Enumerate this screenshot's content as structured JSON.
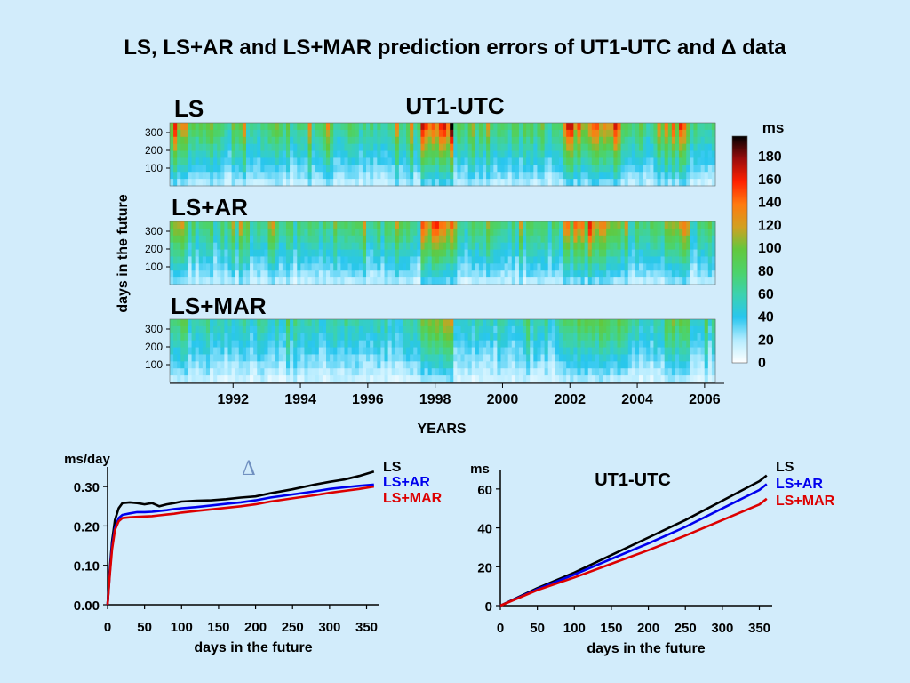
{
  "title": "LS, LS+AR and LS+MAR prediction errors of UT1-UTC and Δ data",
  "heatmap": {
    "title": "UT1-UTC",
    "ylabel": "days in the future",
    "xlabel": "YEARS",
    "colorbar_unit": "ms",
    "colorbar_ticks": [
      "180",
      "160",
      "140",
      "120",
      "100",
      "80",
      "60",
      "40",
      "20",
      "0"
    ],
    "colorbar_colors": [
      "#ffffff",
      "#b5ecff",
      "#28c6ef",
      "#3bd2b0",
      "#4cd36a",
      "#62c83e",
      "#d2a020",
      "#ff7a10",
      "#ff2000",
      "#9a0c0c",
      "#000000"
    ]
  },
  "chart_data": [
    {
      "type": "heatmap",
      "title": "LS",
      "x_ticks": [
        "1992",
        "1994",
        "1996",
        "1998",
        "2000",
        "2002",
        "2004",
        "2006"
      ],
      "y_ticks": [
        "100",
        "200",
        "300"
      ],
      "colorbar": {
        "unit": "ms",
        "range": [
          0,
          180
        ]
      }
    },
    {
      "type": "heatmap",
      "title": "LS+AR",
      "x_ticks": [
        "1992",
        "1994",
        "1996",
        "1998",
        "2000",
        "2002",
        "2004",
        "2006"
      ],
      "y_ticks": [
        "100",
        "200",
        "300"
      ],
      "colorbar": {
        "unit": "ms",
        "range": [
          0,
          180
        ]
      }
    },
    {
      "type": "heatmap",
      "title": "LS+MAR",
      "x_ticks": [
        "1992",
        "1994",
        "1996",
        "1998",
        "2000",
        "2002",
        "2004",
        "2006"
      ],
      "y_ticks": [
        "100",
        "200",
        "300"
      ],
      "colorbar": {
        "unit": "ms",
        "range": [
          0,
          180
        ]
      }
    },
    {
      "type": "line",
      "title": "Δ",
      "ylabel": "ms/day",
      "xlabel": "days in the future",
      "xlim": [
        0,
        365
      ],
      "ylim": [
        0,
        0.35
      ],
      "x_ticks": [
        "0",
        "50",
        "100",
        "150",
        "200",
        "250",
        "300",
        "350"
      ],
      "y_ticks": [
        "0.00",
        "0.10",
        "0.20",
        "0.30"
      ],
      "x": [
        0,
        3,
        6,
        10,
        15,
        20,
        30,
        40,
        50,
        60,
        70,
        80,
        90,
        100,
        120,
        140,
        160,
        180,
        200,
        220,
        250,
        280,
        300,
        320,
        340,
        360
      ],
      "series": [
        {
          "name": "LS",
          "color": "#000000",
          "values": [
            0.0,
            0.09,
            0.16,
            0.215,
            0.245,
            0.258,
            0.26,
            0.258,
            0.255,
            0.258,
            0.25,
            0.255,
            0.258,
            0.262,
            0.264,
            0.265,
            0.268,
            0.272,
            0.275,
            0.283,
            0.293,
            0.305,
            0.312,
            0.318,
            0.327,
            0.338
          ]
        },
        {
          "name": "LS+AR",
          "color": "#0000ee",
          "values": [
            0.0,
            0.08,
            0.15,
            0.195,
            0.22,
            0.228,
            0.232,
            0.235,
            0.235,
            0.236,
            0.238,
            0.24,
            0.243,
            0.245,
            0.248,
            0.252,
            0.256,
            0.26,
            0.265,
            0.272,
            0.28,
            0.288,
            0.294,
            0.298,
            0.302,
            0.305
          ]
        },
        {
          "name": "LS+MAR",
          "color": "#dd0000",
          "values": [
            0.0,
            0.075,
            0.14,
            0.19,
            0.212,
            0.22,
            0.222,
            0.223,
            0.224,
            0.225,
            0.227,
            0.229,
            0.231,
            0.234,
            0.238,
            0.242,
            0.246,
            0.25,
            0.255,
            0.262,
            0.27,
            0.278,
            0.284,
            0.289,
            0.294,
            0.3
          ]
        }
      ]
    },
    {
      "type": "line",
      "title": "UT1-UTC",
      "ylabel": "ms",
      "xlabel": "days in the future",
      "xlim": [
        0,
        365
      ],
      "ylim": [
        0,
        70
      ],
      "x_ticks": [
        "0",
        "50",
        "100",
        "150",
        "200",
        "250",
        "300",
        "350"
      ],
      "y_ticks": [
        "0",
        "20",
        "40",
        "60"
      ],
      "x": [
        0,
        50,
        100,
        150,
        200,
        250,
        300,
        350,
        360
      ],
      "series": [
        {
          "name": "LS",
          "color": "#000000",
          "values": [
            0,
            9,
            17,
            26,
            35,
            44,
            54,
            64,
            67
          ]
        },
        {
          "name": "LS+AR",
          "color": "#0000ee",
          "values": [
            0,
            8.5,
            16,
            24,
            32,
            40.5,
            50,
            59.5,
            62.5
          ]
        },
        {
          "name": "LS+MAR",
          "color": "#dd0000",
          "values": [
            0,
            8,
            14.5,
            21.5,
            28.5,
            36,
            44,
            52,
            55
          ]
        }
      ]
    }
  ]
}
